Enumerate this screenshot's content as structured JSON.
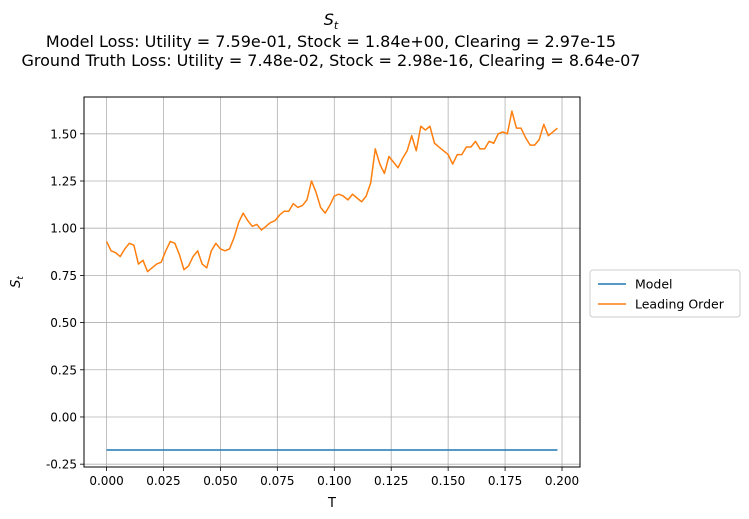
{
  "chart_data": {
    "type": "line",
    "title": "S_t",
    "subtitle_lines": [
      "Model Loss: Utility = 7.59e-01, Stock = 1.84e+00, Clearing = 2.97e-15",
      "Ground Truth Loss: Utility = 7.48e-02, Stock = 2.98e-16, Clearing = 8.64e-07"
    ],
    "xlabel": "T",
    "ylabel": "S_t",
    "xlim": [
      -0.0099,
      0.2079
    ],
    "ylim": [
      -0.265,
      1.695
    ],
    "xticks": [
      "0.000",
      "0.025",
      "0.050",
      "0.075",
      "0.100",
      "0.125",
      "0.150",
      "0.175",
      "0.200"
    ],
    "yticks": [
      "-0.25",
      "0.00",
      "0.25",
      "0.50",
      "0.75",
      "1.00",
      "1.25",
      "1.50"
    ],
    "grid": true,
    "legend_position": "outside-right",
    "series": [
      {
        "name": "Model",
        "color": "#1f77b4",
        "x": [
          0.0,
          0.198
        ],
        "y": [
          -0.175,
          -0.175
        ]
      },
      {
        "name": "Leading Order",
        "color": "#ff7f0e",
        "x": [
          0.0,
          0.002,
          0.004,
          0.006,
          0.008,
          0.01,
          0.012,
          0.014,
          0.016,
          0.018,
          0.02,
          0.022,
          0.024,
          0.026,
          0.028,
          0.03,
          0.032,
          0.034,
          0.036,
          0.038,
          0.04,
          0.042,
          0.044,
          0.046,
          0.048,
          0.05,
          0.052,
          0.054,
          0.056,
          0.058,
          0.06,
          0.062,
          0.064,
          0.066,
          0.068,
          0.07,
          0.072,
          0.074,
          0.076,
          0.078,
          0.08,
          0.082,
          0.084,
          0.086,
          0.088,
          0.09,
          0.092,
          0.094,
          0.096,
          0.098,
          0.1,
          0.102,
          0.104,
          0.106,
          0.108,
          0.11,
          0.112,
          0.114,
          0.116,
          0.118,
          0.12,
          0.122,
          0.124,
          0.126,
          0.128,
          0.13,
          0.132,
          0.134,
          0.136,
          0.138,
          0.14,
          0.142,
          0.144,
          0.146,
          0.148,
          0.15,
          0.152,
          0.154,
          0.156,
          0.158,
          0.16,
          0.162,
          0.164,
          0.166,
          0.168,
          0.17,
          0.172,
          0.174,
          0.176,
          0.178,
          0.18,
          0.182,
          0.184,
          0.186,
          0.188,
          0.19,
          0.192,
          0.194,
          0.196,
          0.198
        ],
        "y": [
          0.93,
          0.88,
          0.87,
          0.85,
          0.89,
          0.92,
          0.91,
          0.81,
          0.83,
          0.77,
          0.79,
          0.81,
          0.82,
          0.88,
          0.93,
          0.92,
          0.86,
          0.78,
          0.8,
          0.85,
          0.88,
          0.81,
          0.79,
          0.88,
          0.92,
          0.89,
          0.88,
          0.89,
          0.95,
          1.03,
          1.08,
          1.04,
          1.01,
          1.02,
          0.99,
          1.01,
          1.03,
          1.04,
          1.07,
          1.09,
          1.09,
          1.13,
          1.11,
          1.12,
          1.15,
          1.25,
          1.19,
          1.11,
          1.08,
          1.12,
          1.17,
          1.18,
          1.17,
          1.15,
          1.18,
          1.16,
          1.14,
          1.17,
          1.24,
          1.42,
          1.34,
          1.29,
          1.38,
          1.35,
          1.32,
          1.37,
          1.41,
          1.49,
          1.41,
          1.54,
          1.52,
          1.54,
          1.45,
          1.43,
          1.41,
          1.39,
          1.34,
          1.39,
          1.39,
          1.43,
          1.43,
          1.46,
          1.42,
          1.42,
          1.46,
          1.45,
          1.5,
          1.51,
          1.5,
          1.62,
          1.53,
          1.53,
          1.48,
          1.44,
          1.44,
          1.47,
          1.55,
          1.49,
          1.51,
          1.53
        ]
      }
    ]
  }
}
